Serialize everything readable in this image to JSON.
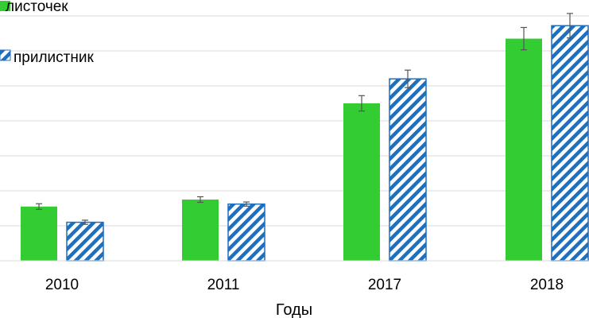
{
  "chart_data": {
    "type": "bar",
    "title": "",
    "xlabel": "Годы",
    "ylabel": "",
    "categories": [
      "2010",
      "2011",
      "2017",
      "2018"
    ],
    "ylim": [
      0,
      7
    ],
    "grid": true,
    "legend_position": "top-left",
    "series": [
      {
        "name": "листочек",
        "pattern": "solid",
        "color": "#33cc33",
        "values": [
          1.55,
          1.75,
          4.5,
          6.35
        ],
        "errors": [
          0.08,
          0.08,
          0.22,
          0.32
        ]
      },
      {
        "name": "прилистник",
        "pattern": "diagonal-stripes",
        "color": "#1f6fbf",
        "values": [
          1.1,
          1.62,
          5.2,
          6.72
        ],
        "errors": [
          0.06,
          0.06,
          0.25,
          0.35
        ]
      }
    ]
  }
}
